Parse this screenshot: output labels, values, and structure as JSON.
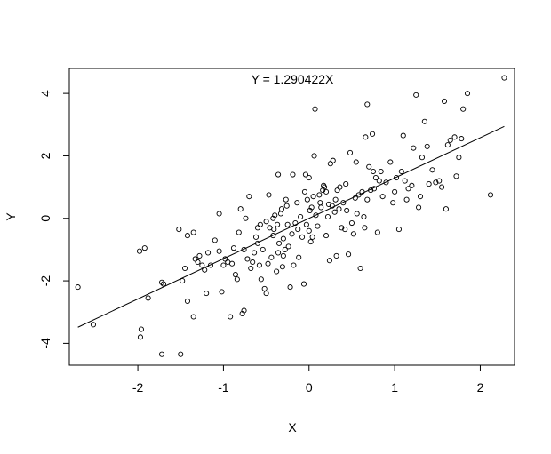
{
  "chart_data": {
    "type": "scatter",
    "title": "",
    "xlabel": "X",
    "ylabel": "Y",
    "annotation": "Y = 1.290422X",
    "xlim": [
      -2.8,
      2.4
    ],
    "ylim": [
      -4.7,
      4.8
    ],
    "x_ticks": [
      -2,
      -1,
      0,
      1,
      2
    ],
    "y_ticks": [
      -4,
      -2,
      0,
      2,
      4
    ],
    "x_tick_labels": [
      "-2",
      "-1",
      "0",
      "1",
      "2"
    ],
    "y_tick_labels": [
      "-4",
      "-2",
      "0",
      "2",
      "4"
    ],
    "grid": false,
    "legend": "none",
    "regression_line": {
      "slope": 1.290422,
      "intercept": 0,
      "x_range": [
        -2.7,
        2.28
      ]
    },
    "points": [
      [
        -2.7,
        -2.2
      ],
      [
        -2.52,
        -3.4
      ],
      [
        -1.96,
        -3.55
      ],
      [
        -1.97,
        -3.8
      ],
      [
        -1.98,
        -1.05
      ],
      [
        -1.92,
        -0.95
      ],
      [
        -1.88,
        -2.55
      ],
      [
        -1.72,
        -2.05
      ],
      [
        -1.7,
        -2.1
      ],
      [
        -1.72,
        -4.35
      ],
      [
        -1.5,
        -4.35
      ],
      [
        -1.52,
        -0.35
      ],
      [
        -1.48,
        -2.0
      ],
      [
        -1.45,
        -1.6
      ],
      [
        -1.42,
        -0.55
      ],
      [
        -1.42,
        -2.65
      ],
      [
        -1.35,
        -3.15
      ],
      [
        -1.35,
        -0.45
      ],
      [
        -1.33,
        -1.3
      ],
      [
        -1.3,
        -1.4
      ],
      [
        -1.28,
        -1.2
      ],
      [
        -1.25,
        -1.5
      ],
      [
        -1.22,
        -1.65
      ],
      [
        -1.2,
        -2.4
      ],
      [
        -1.18,
        -1.1
      ],
      [
        -1.15,
        -1.5
      ],
      [
        -1.1,
        -0.7
      ],
      [
        -1.05,
        -1.05
      ],
      [
        -1.05,
        0.15
      ],
      [
        -1.02,
        -2.35
      ],
      [
        -1.0,
        -1.5
      ],
      [
        -0.98,
        -1.3
      ],
      [
        -0.95,
        -1.4
      ],
      [
        -0.92,
        -3.15
      ],
      [
        -0.9,
        -1.45
      ],
      [
        -0.88,
        -0.95
      ],
      [
        -0.86,
        -1.8
      ],
      [
        -0.84,
        -1.95
      ],
      [
        -0.82,
        -0.45
      ],
      [
        -0.8,
        0.3
      ],
      [
        -0.78,
        -3.05
      ],
      [
        -0.76,
        -2.95
      ],
      [
        -0.76,
        -1.0
      ],
      [
        -0.74,
        0.0
      ],
      [
        -0.72,
        -1.3
      ],
      [
        -0.7,
        0.7
      ],
      [
        -0.68,
        -1.6
      ],
      [
        -0.66,
        -1.4
      ],
      [
        -0.64,
        -1.1
      ],
      [
        -0.62,
        -0.6
      ],
      [
        -0.6,
        -0.3
      ],
      [
        -0.6,
        -0.8
      ],
      [
        -0.58,
        -1.5
      ],
      [
        -0.57,
        -0.2
      ],
      [
        -0.56,
        -1.95
      ],
      [
        -0.54,
        -1.0
      ],
      [
        -0.52,
        -2.25
      ],
      [
        -0.5,
        -2.4
      ],
      [
        -0.5,
        -0.1
      ],
      [
        -0.48,
        -1.45
      ],
      [
        -0.47,
        0.75
      ],
      [
        -0.46,
        -0.3
      ],
      [
        -0.44,
        -1.25
      ],
      [
        -0.42,
        -0.55
      ],
      [
        -0.42,
        0.0
      ],
      [
        -0.41,
        -0.35
      ],
      [
        -0.4,
        0.1
      ],
      [
        -0.38,
        -1.7
      ],
      [
        -0.37,
        -0.2
      ],
      [
        -0.36,
        -1.1
      ],
      [
        -0.36,
        1.4
      ],
      [
        -0.35,
        -0.8
      ],
      [
        -0.33,
        0.15
      ],
      [
        -0.32,
        0.3
      ],
      [
        -0.31,
        -1.55
      ],
      [
        -0.3,
        -1.2
      ],
      [
        -0.3,
        -0.65
      ],
      [
        -0.28,
        -1.0
      ],
      [
        -0.27,
        0.6
      ],
      [
        -0.26,
        0.4
      ],
      [
        -0.25,
        -0.2
      ],
      [
        -0.24,
        -0.9
      ],
      [
        -0.22,
        -2.2
      ],
      [
        -0.2,
        -0.5
      ],
      [
        -0.19,
        1.4
      ],
      [
        -0.18,
        -1.5
      ],
      [
        -0.16,
        -0.15
      ],
      [
        -0.14,
        0.5
      ],
      [
        -0.13,
        -0.35
      ],
      [
        -0.12,
        -1.25
      ],
      [
        -0.1,
        0.05
      ],
      [
        -0.08,
        -0.6
      ],
      [
        -0.06,
        -2.1
      ],
      [
        -0.05,
        0.85
      ],
      [
        -0.04,
        1.4
      ],
      [
        -0.03,
        -0.2
      ],
      [
        -0.02,
        0.6
      ],
      [
        0.0,
        1.3
      ],
      [
        0.0,
        -0.4
      ],
      [
        0.01,
        0.25
      ],
      [
        0.02,
        -0.75
      ],
      [
        0.03,
        0.35
      ],
      [
        0.04,
        -0.6
      ],
      [
        0.05,
        0.7
      ],
      [
        0.06,
        2.0
      ],
      [
        0.07,
        3.5
      ],
      [
        0.08,
        0.1
      ],
      [
        0.1,
        -0.25
      ],
      [
        0.12,
        0.75
      ],
      [
        0.13,
        0.5
      ],
      [
        0.14,
        0.35
      ],
      [
        0.16,
        0.9
      ],
      [
        0.17,
        1.05
      ],
      [
        0.18,
        1.0
      ],
      [
        0.2,
        0.85
      ],
      [
        0.2,
        -0.55
      ],
      [
        0.22,
        0.05
      ],
      [
        0.23,
        0.45
      ],
      [
        0.24,
        -1.35
      ],
      [
        0.25,
        1.75
      ],
      [
        0.27,
        0.4
      ],
      [
        0.28,
        1.85
      ],
      [
        0.3,
        0.2
      ],
      [
        0.31,
        0.6
      ],
      [
        0.32,
        -1.2
      ],
      [
        0.33,
        0.9
      ],
      [
        0.35,
        0.3
      ],
      [
        0.36,
        1.0
      ],
      [
        0.38,
        -0.3
      ],
      [
        0.4,
        0.5
      ],
      [
        0.42,
        -0.35
      ],
      [
        0.43,
        1.1
      ],
      [
        0.44,
        0.25
      ],
      [
        0.46,
        -1.15
      ],
      [
        0.48,
        2.1
      ],
      [
        0.5,
        -0.15
      ],
      [
        0.52,
        -0.5
      ],
      [
        0.54,
        0.65
      ],
      [
        0.55,
        1.8
      ],
      [
        0.56,
        0.15
      ],
      [
        0.58,
        0.75
      ],
      [
        0.6,
        -1.6
      ],
      [
        0.62,
        0.85
      ],
      [
        0.64,
        0.05
      ],
      [
        0.65,
        -0.3
      ],
      [
        0.66,
        2.6
      ],
      [
        0.68,
        3.65
      ],
      [
        0.68,
        0.6
      ],
      [
        0.7,
        1.65
      ],
      [
        0.72,
        0.9
      ],
      [
        0.74,
        2.7
      ],
      [
        0.75,
        1.5
      ],
      [
        0.76,
        0.95
      ],
      [
        0.78,
        1.3
      ],
      [
        0.8,
        -0.45
      ],
      [
        0.82,
        1.2
      ],
      [
        0.84,
        1.5
      ],
      [
        0.86,
        0.7
      ],
      [
        0.9,
        1.15
      ],
      [
        0.95,
        1.8
      ],
      [
        0.98,
        0.5
      ],
      [
        1.0,
        0.85
      ],
      [
        1.02,
        1.3
      ],
      [
        1.05,
        -0.35
      ],
      [
        1.08,
        1.5
      ],
      [
        1.1,
        2.65
      ],
      [
        1.12,
        1.2
      ],
      [
        1.14,
        0.6
      ],
      [
        1.16,
        0.95
      ],
      [
        1.2,
        1.05
      ],
      [
        1.22,
        2.25
      ],
      [
        1.25,
        3.95
      ],
      [
        1.28,
        0.35
      ],
      [
        1.3,
        0.7
      ],
      [
        1.32,
        1.95
      ],
      [
        1.35,
        3.1
      ],
      [
        1.38,
        2.3
      ],
      [
        1.4,
        1.1
      ],
      [
        1.44,
        1.55
      ],
      [
        1.48,
        1.15
      ],
      [
        1.52,
        1.2
      ],
      [
        1.55,
        1.0
      ],
      [
        1.58,
        3.75
      ],
      [
        1.6,
        0.3
      ],
      [
        1.62,
        2.35
      ],
      [
        1.65,
        2.5
      ],
      [
        1.7,
        2.6
      ],
      [
        1.72,
        1.35
      ],
      [
        1.75,
        1.95
      ],
      [
        1.78,
        2.55
      ],
      [
        1.8,
        3.5
      ],
      [
        1.85,
        4.0
      ],
      [
        2.12,
        0.75
      ],
      [
        2.28,
        4.5
      ]
    ]
  }
}
